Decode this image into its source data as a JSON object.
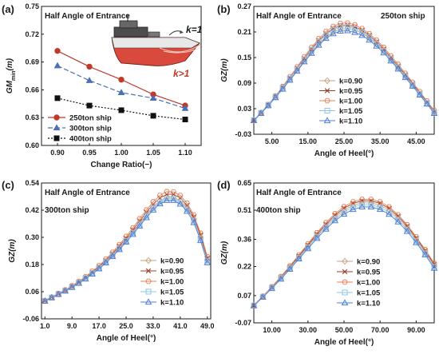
{
  "colors": {
    "k_0.90": "#c9a27e",
    "k_0.95": "#9c3d2a",
    "k_1.00": "#e8825a",
    "k_1.05": "#8fc6e6",
    "k_1.10": "#4f7fd6",
    "250ton": "#c0392b",
    "300ton": "#4a6fb5",
    "400ton": "#111111"
  },
  "panels": [
    {
      "letter": "(a)",
      "title": "Half Angle of Entrance",
      "subtitle": ""
    },
    {
      "letter": "(b)",
      "title": "Half Angle of Entrance",
      "subtitle": "250ton ship"
    },
    {
      "letter": "(c)",
      "title": "Half Angle of Entrance",
      "subtitle": "300ton ship"
    },
    {
      "letter": "(d)",
      "title": "Half Angle of Entrance",
      "subtitle": "400ton ship"
    }
  ],
  "inset_labels": {
    "k_eq": "k=1",
    "k_gt": "k>1"
  },
  "chart_data": [
    {
      "type": "line",
      "title": "Half Angle of Entrance",
      "xlabel": "Change Ratio(−)",
      "ylabel": "GM_min(m)",
      "x": [
        0.9,
        0.95,
        1.0,
        1.05,
        1.1
      ],
      "xticks": [
        "0.90",
        "0.95",
        "1.00",
        "1.05",
        "1.10"
      ],
      "xlim": [
        0.875,
        1.125
      ],
      "ylim": [
        0.6,
        0.75
      ],
      "yticks": [
        "0.60",
        "0.63",
        "0.66",
        "0.69",
        "0.72",
        "0.75"
      ],
      "legend": "bottom-left",
      "series": [
        {
          "name": "250ton ship",
          "marker": "circle",
          "dash": "",
          "values": [
            0.702,
            0.685,
            0.671,
            0.655,
            0.643
          ]
        },
        {
          "name": "300ton ship",
          "marker": "triangle",
          "dash": "6,3",
          "values": [
            0.686,
            0.67,
            0.657,
            0.651,
            0.64
          ]
        },
        {
          "name": "400ton ship",
          "marker": "square",
          "dash": "2,2",
          "values": [
            0.651,
            0.643,
            0.638,
            0.632,
            0.628
          ]
        }
      ]
    },
    {
      "type": "line",
      "title": "Half Angle of Entrance",
      "subtitle": "250ton ship",
      "xlabel": "Angle of Heel(°)",
      "ylabel": "GZ(m)",
      "xlim": [
        0,
        50
      ],
      "xticks": [
        5,
        15,
        25,
        35,
        45
      ],
      "xtick_labels": [
        "5.00",
        "15.00",
        "25.00",
        "35.00",
        "45.00"
      ],
      "ylim": [
        -0.03,
        0.27
      ],
      "yticks": [
        "-0.03",
        "0.03",
        "0.09",
        "0.15",
        "0.21",
        "0.27"
      ],
      "legend": "center",
      "x": [
        0,
        2,
        4,
        6,
        8,
        10,
        12,
        14,
        16,
        18,
        20,
        22,
        24,
        26,
        28,
        30,
        32,
        34,
        36,
        38,
        40,
        42,
        44,
        46,
        48,
        50
      ],
      "series": [
        {
          "name": "k=0.90",
          "values": [
            0.003,
            0.02,
            0.038,
            0.057,
            0.077,
            0.098,
            0.12,
            0.142,
            0.163,
            0.182,
            0.198,
            0.21,
            0.216,
            0.218,
            0.214,
            0.207,
            0.196,
            0.181,
            0.165,
            0.145,
            0.126,
            0.106,
            0.085,
            0.063,
            0.042,
            0.02
          ]
        },
        {
          "name": "k=0.95",
          "values": [
            0.003,
            0.02,
            0.039,
            0.059,
            0.08,
            0.102,
            0.125,
            0.148,
            0.17,
            0.19,
            0.206,
            0.218,
            0.225,
            0.226,
            0.222,
            0.214,
            0.202,
            0.187,
            0.17,
            0.15,
            0.13,
            0.11,
            0.089,
            0.067,
            0.045,
            0.023
          ]
        },
        {
          "name": "k=1.00",
          "values": [
            0.003,
            0.021,
            0.04,
            0.06,
            0.082,
            0.105,
            0.128,
            0.152,
            0.174,
            0.194,
            0.211,
            0.223,
            0.23,
            0.231,
            0.227,
            0.218,
            0.206,
            0.191,
            0.174,
            0.154,
            0.134,
            0.113,
            0.092,
            0.07,
            0.048,
            0.026
          ]
        },
        {
          "name": "k=1.05",
          "values": [
            0.003,
            0.02,
            0.039,
            0.058,
            0.079,
            0.101,
            0.124,
            0.146,
            0.168,
            0.187,
            0.203,
            0.215,
            0.221,
            0.222,
            0.218,
            0.21,
            0.198,
            0.183,
            0.166,
            0.147,
            0.127,
            0.107,
            0.086,
            0.065,
            0.043,
            0.021
          ]
        },
        {
          "name": "k=1.10",
          "values": [
            0.002,
            0.019,
            0.037,
            0.056,
            0.076,
            0.097,
            0.118,
            0.14,
            0.16,
            0.179,
            0.195,
            0.206,
            0.212,
            0.213,
            0.209,
            0.202,
            0.191,
            0.177,
            0.161,
            0.142,
            0.123,
            0.103,
            0.083,
            0.062,
            0.041,
            0.019
          ]
        }
      ]
    },
    {
      "type": "line",
      "title": "Half Angle of Entrance",
      "subtitle": "300ton ship",
      "xlabel": "Angle of Heel(°)",
      "ylabel": "GZ(m)",
      "xlim": [
        0,
        50
      ],
      "xticks": [
        1,
        9,
        17,
        25,
        33,
        41,
        49
      ],
      "xtick_labels": [
        "1.0",
        "9.0",
        "17.0",
        "25.0",
        "33.0",
        "41.0",
        "49.0"
      ],
      "ylim": [
        -0.06,
        0.54
      ],
      "yticks": [
        "-0.06",
        "0.06",
        "0.18",
        "0.30",
        "0.42",
        "0.54"
      ],
      "legend": "right",
      "x": [
        1,
        3,
        5,
        7,
        9,
        11,
        13,
        15,
        17,
        19,
        21,
        23,
        25,
        27,
        29,
        31,
        33,
        35,
        37,
        39,
        41,
        43,
        45,
        47,
        49
      ],
      "series": [
        {
          "name": "k=0.90",
          "values": [
            0.02,
            0.035,
            0.05,
            0.065,
            0.082,
            0.1,
            0.12,
            0.142,
            0.166,
            0.193,
            0.222,
            0.254,
            0.288,
            0.324,
            0.362,
            0.4,
            0.435,
            0.462,
            0.478,
            0.478,
            0.462,
            0.43,
            0.38,
            0.3,
            0.2
          ]
        },
        {
          "name": "k=0.95",
          "values": [
            0.02,
            0.035,
            0.051,
            0.066,
            0.084,
            0.102,
            0.123,
            0.146,
            0.171,
            0.198,
            0.228,
            0.261,
            0.296,
            0.333,
            0.372,
            0.411,
            0.446,
            0.474,
            0.49,
            0.49,
            0.474,
            0.441,
            0.39,
            0.31,
            0.208
          ]
        },
        {
          "name": "k=1.00",
          "values": [
            0.021,
            0.036,
            0.052,
            0.068,
            0.086,
            0.105,
            0.126,
            0.15,
            0.175,
            0.203,
            0.234,
            0.268,
            0.304,
            0.342,
            0.382,
            0.421,
            0.457,
            0.485,
            0.502,
            0.501,
            0.485,
            0.451,
            0.399,
            0.318,
            0.215
          ]
        },
        {
          "name": "k=1.05",
          "values": [
            0.019,
            0.034,
            0.049,
            0.064,
            0.081,
            0.099,
            0.119,
            0.141,
            0.165,
            0.191,
            0.22,
            0.251,
            0.284,
            0.32,
            0.357,
            0.395,
            0.429,
            0.456,
            0.472,
            0.472,
            0.456,
            0.424,
            0.374,
            0.294,
            0.195
          ]
        },
        {
          "name": "k=1.10",
          "values": [
            0.018,
            0.033,
            0.048,
            0.063,
            0.079,
            0.097,
            0.116,
            0.138,
            0.161,
            0.187,
            0.215,
            0.246,
            0.279,
            0.313,
            0.35,
            0.387,
            0.421,
            0.448,
            0.463,
            0.463,
            0.447,
            0.415,
            0.365,
            0.286,
            0.188
          ]
        }
      ]
    },
    {
      "type": "line",
      "title": "Half Angle of Entrance",
      "subtitle": "400ton ship",
      "xlabel": "Angle of Heel(°)",
      "ylabel": "GZ(m)",
      "xlim": [
        0,
        100
      ],
      "xticks": [
        10,
        30,
        50,
        70,
        90
      ],
      "xtick_labels": [
        "10.00",
        "30.00",
        "50.00",
        "70.00",
        "90.00"
      ],
      "ylim": [
        -0.07,
        0.65
      ],
      "yticks": [
        "-0.07",
        "0.07",
        "0.22",
        "0.36",
        "0.51",
        "0.65"
      ],
      "legend": "right",
      "x": [
        0,
        5,
        10,
        15,
        20,
        25,
        30,
        35,
        40,
        45,
        50,
        55,
        60,
        65,
        70,
        75,
        80,
        85,
        90,
        95,
        100
      ],
      "series": [
        {
          "name": "k=0.90",
          "values": [
            0.02,
            0.065,
            0.112,
            0.162,
            0.215,
            0.27,
            0.325,
            0.38,
            0.43,
            0.475,
            0.51,
            0.535,
            0.548,
            0.548,
            0.535,
            0.51,
            0.47,
            0.42,
            0.36,
            0.295,
            0.225
          ]
        },
        {
          "name": "k=0.95",
          "values": [
            0.02,
            0.066,
            0.114,
            0.165,
            0.219,
            0.275,
            0.331,
            0.387,
            0.438,
            0.484,
            0.52,
            0.545,
            0.558,
            0.558,
            0.545,
            0.519,
            0.479,
            0.428,
            0.367,
            0.302,
            0.232
          ]
        },
        {
          "name": "k=1.00",
          "values": [
            0.021,
            0.067,
            0.116,
            0.168,
            0.223,
            0.28,
            0.337,
            0.394,
            0.446,
            0.492,
            0.528,
            0.553,
            0.566,
            0.566,
            0.553,
            0.527,
            0.486,
            0.435,
            0.373,
            0.307,
            0.237
          ]
        },
        {
          "name": "k=1.05",
          "values": [
            0.019,
            0.064,
            0.11,
            0.159,
            0.211,
            0.265,
            0.319,
            0.373,
            0.422,
            0.466,
            0.501,
            0.525,
            0.538,
            0.538,
            0.525,
            0.5,
            0.461,
            0.411,
            0.352,
            0.288,
            0.219
          ]
        },
        {
          "name": "k=1.10",
          "values": [
            0.018,
            0.062,
            0.107,
            0.155,
            0.206,
            0.259,
            0.312,
            0.365,
            0.413,
            0.456,
            0.49,
            0.514,
            0.527,
            0.527,
            0.514,
            0.489,
            0.45,
            0.401,
            0.343,
            0.28,
            0.211
          ]
        }
      ]
    }
  ]
}
